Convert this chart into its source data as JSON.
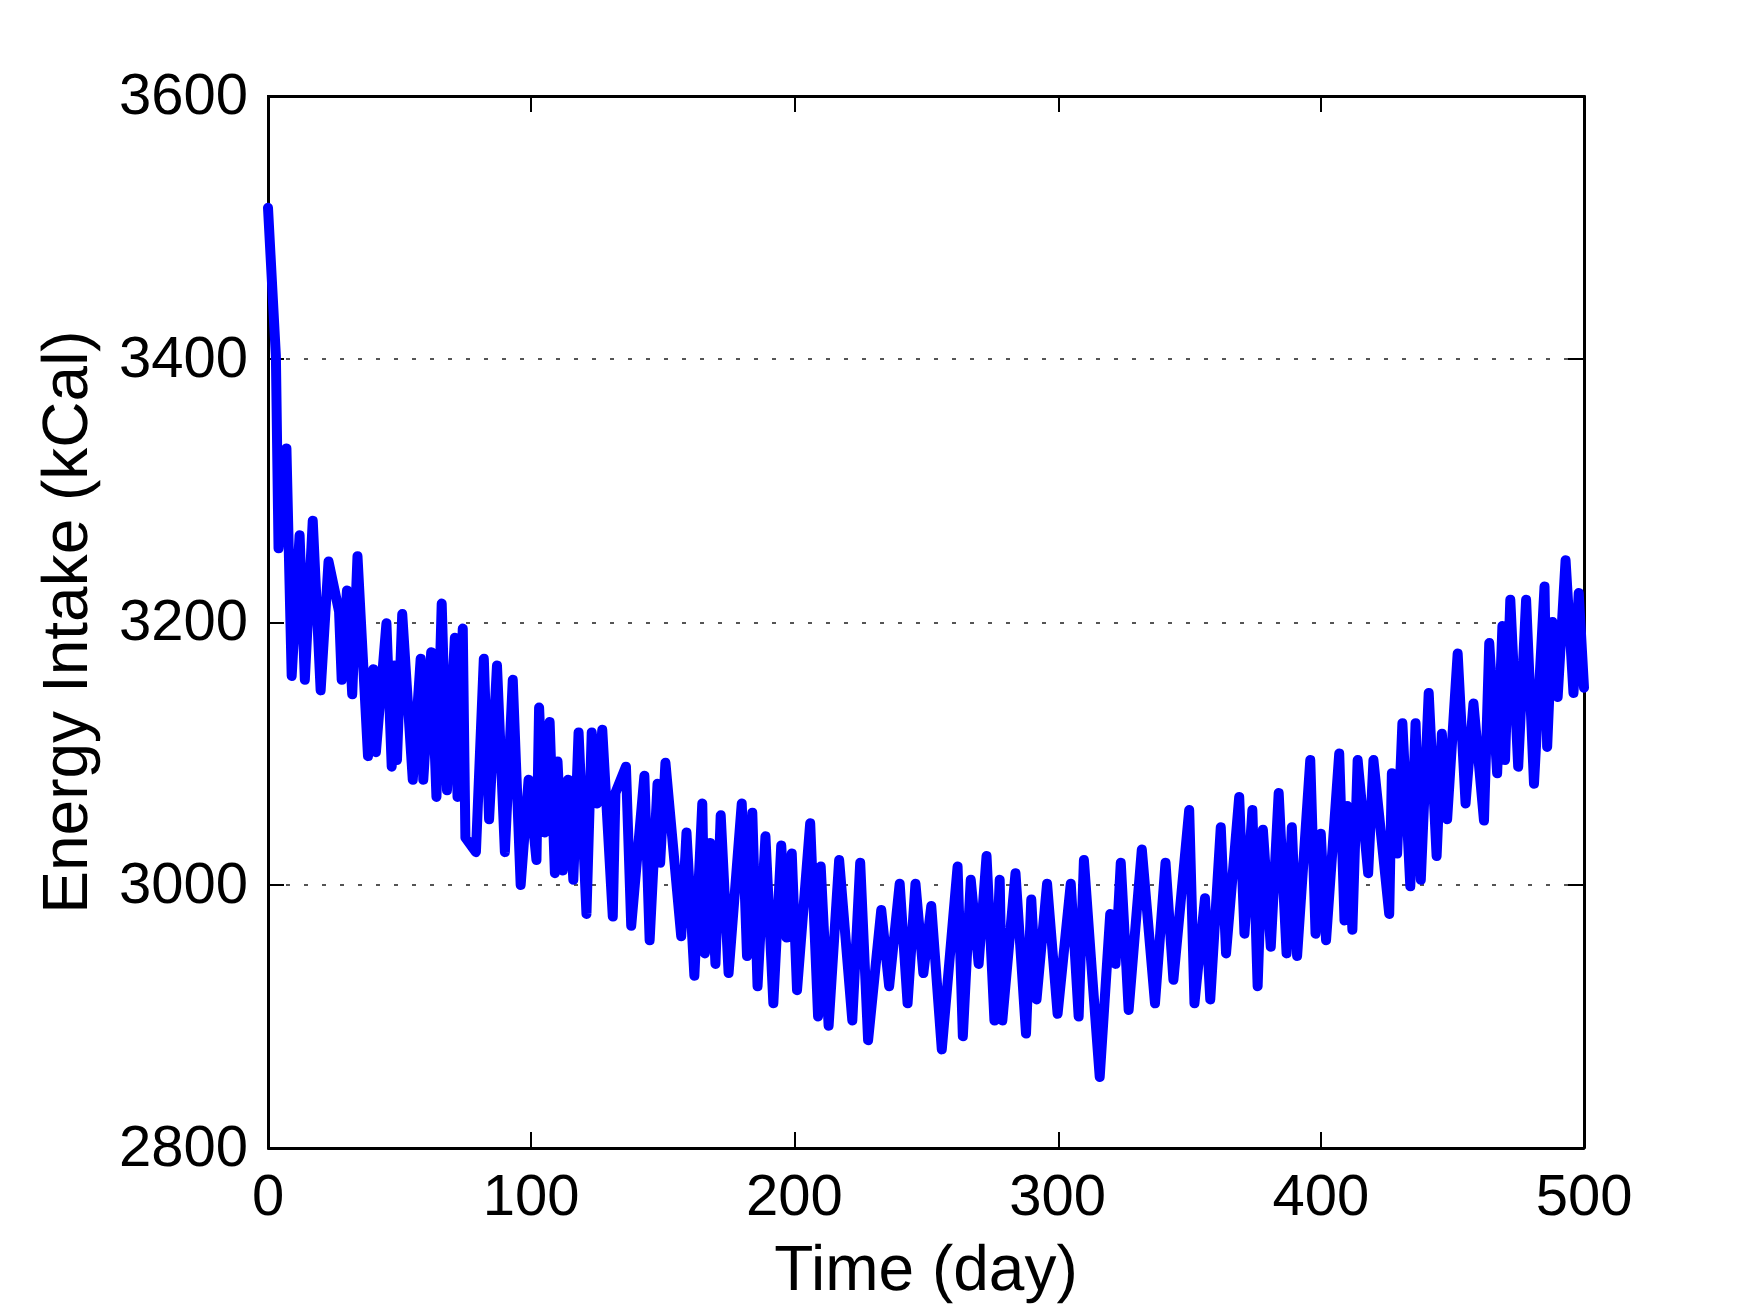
{
  "chart_data": {
    "type": "line",
    "xlabel": "Time (day)",
    "ylabel": "Energy Intake (kCal)",
    "x": [
      0,
      3,
      4,
      7,
      9,
      12,
      14,
      17,
      20,
      23,
      27,
      28,
      30,
      32,
      34,
      38,
      40,
      41,
      45,
      47,
      48,
      49,
      51,
      55,
      58,
      59,
      62,
      64,
      66,
      68,
      71,
      72,
      74,
      75,
      79,
      82,
      84,
      87,
      90,
      93,
      96,
      99,
      102,
      103,
      105,
      107,
      109,
      110,
      112,
      114,
      116,
      118,
      121,
      123,
      125,
      127,
      131,
      132,
      136,
      138,
      143,
      145,
      148,
      149,
      151,
      157,
      159,
      162,
      165,
      166,
      168,
      170,
      172,
      175,
      180,
      182,
      184,
      186,
      189,
      192,
      195,
      197,
      199,
      201,
      206,
      209,
      210,
      213,
      217,
      222,
      225,
      228,
      233,
      236,
      240,
      243,
      246,
      249,
      252,
      256,
      262,
      264,
      267,
      270,
      273,
      276,
      278,
      279,
      284,
      288,
      290,
      292,
      296,
      300,
      305,
      308,
      310,
      313,
      316,
      320,
      322,
      324,
      327,
      332,
      337,
      341,
      344,
      350,
      352,
      356,
      358,
      362,
      364,
      369,
      371,
      374,
      376,
      378,
      381,
      384,
      387,
      389,
      391,
      396,
      398,
      400,
      402,
      407,
      409,
      410,
      412,
      414,
      418,
      420,
      426,
      427,
      429,
      431,
      434,
      436,
      438,
      441,
      444,
      446,
      448,
      452,
      455,
      458,
      462,
      464,
      467,
      469,
      470,
      472,
      475,
      478,
      481,
      485,
      486,
      488,
      490,
      493,
      496,
      498,
      500
    ],
    "series": [
      {
        "color": "#0000ff",
        "values": [
          3515,
          3402,
          3256,
          3332,
          3159,
          3266,
          3156,
          3277,
          3148,
          3246,
          3208,
          3156,
          3224,
          3145,
          3250,
          3098,
          3164,
          3101,
          3199,
          3090,
          3167,
          3095,
          3206,
          3080,
          3172,
          3080,
          3177,
          3067,
          3214,
          3072,
          3188,
          3067,
          3195,
          3036,
          3025,
          3172,
          3050,
          3167,
          3025,
          3156,
          3000,
          3080,
          3019,
          3135,
          3040,
          3124,
          3009,
          3094,
          3011,
          3080,
          3004,
          3116,
          2978,
          3116,
          3062,
          3118,
          2976,
          3070,
          3090,
          2969,
          3083,
          2958,
          3077,
          3017,
          3093,
          2961,
          3040,
          2931,
          3062,
          2948,
          3032,
          2940,
          3053,
          2933,
          3062,
          2946,
          3055,
          2923,
          3037,
          2910,
          3030,
          2960,
          3024,
          2920,
          3047,
          2900,
          3014,
          2893,
          3019,
          2897,
          3017,
          2882,
          2981,
          2923,
          3001,
          2910,
          3001,
          2933,
          2984,
          2875,
          3014,
          2885,
          3004,
          2940,
          3022,
          2897,
          3004,
          2897,
          3009,
          2887,
          2989,
          2913,
          3001,
          2902,
          3001,
          2900,
          3019,
          2935,
          2854,
          2978,
          2940,
          3017,
          2905,
          3027,
          2910,
          3017,
          2928,
          3057,
          2910,
          2990,
          2913,
          3044,
          2948,
          3067,
          2963,
          3057,
          2923,
          3042,
          2953,
          3070,
          2948,
          3044,
          2946,
          3095,
          2963,
          3039,
          2958,
          3100,
          2973,
          3060,
          2966,
          3095,
          3009,
          3095,
          2978,
          3085,
          3024,
          3123,
          2999,
          3123,
          3004,
          3146,
          3022,
          3115,
          3050,
          3176,
          3062,
          3138,
          3049,
          3184,
          3085,
          3197,
          3095,
          3217,
          3090,
          3217,
          3077,
          3227,
          3105,
          3200,
          3143,
          3247,
          3146,
          3222,
          3150
        ]
      }
    ],
    "xlim": [
      0,
      500
    ],
    "xticks": [
      0,
      100,
      200,
      300,
      400,
      500
    ],
    "ylim": [
      2800,
      3600
    ],
    "yticks": [
      2800,
      3000,
      3200,
      3400,
      3600
    ],
    "grid": "y",
    "marker": "none",
    "line_style": "solid"
  }
}
